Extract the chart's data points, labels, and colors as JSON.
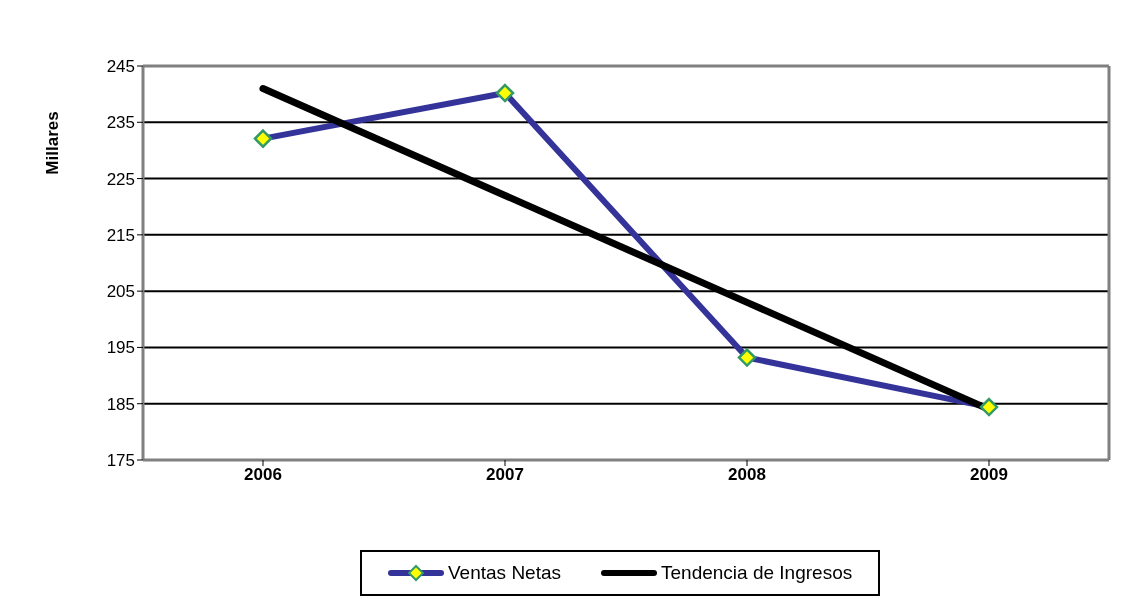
{
  "chart_data": {
    "type": "line",
    "ylabel": "Millares",
    "categories": [
      "2006",
      "2007",
      "2008",
      "2009"
    ],
    "series": [
      {
        "name": "Ventas Netas",
        "color": "#333399",
        "marker": "diamond",
        "values": [
          232.1,
          240.2,
          193.2,
          184.4
        ]
      },
      {
        "name": "Tendencia de Ingresos",
        "color": "#000000",
        "marker": "none",
        "values": [
          241.0,
          222.0,
          203.0,
          184.0
        ]
      }
    ],
    "ylim": [
      175,
      245
    ],
    "yticks": [
      175,
      185,
      195,
      205,
      215,
      225,
      235,
      245
    ],
    "grid": "y",
    "legend": "bottom",
    "line_style": "solid"
  }
}
